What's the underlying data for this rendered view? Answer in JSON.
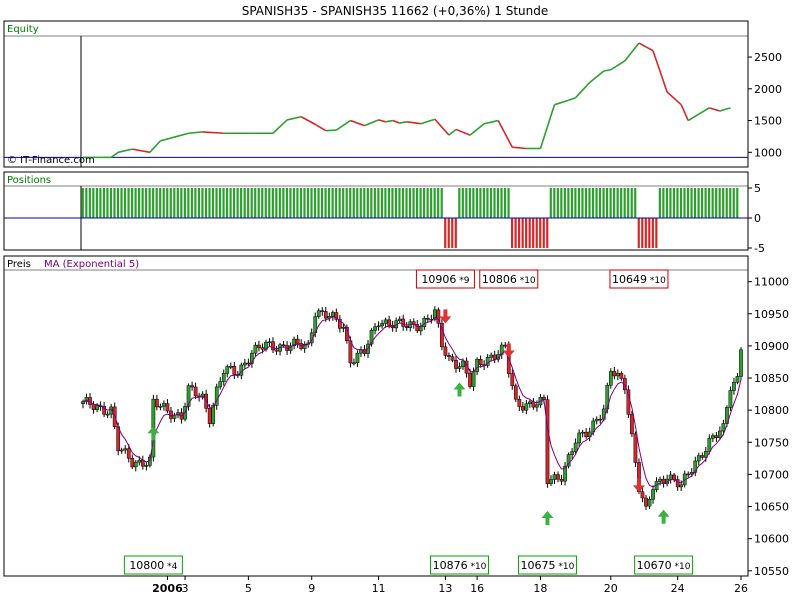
{
  "title": "SPANISH35 - SPANISH35     11662 (+0,36%)     1 Stunde",
  "watermark": "© IT-Finance.com",
  "colors": {
    "up": "#2ca02c",
    "down": "#d62728",
    "ma": "#800080",
    "pane_label_green": "#008000",
    "frame": "#000000",
    "zero_line": "#0000aa",
    "box_red": "#cc0000",
    "box_green": "#00aa00"
  },
  "panes": {
    "equity_label": "Equity",
    "positions_label": "Positions",
    "price_label": "Preis",
    "ma_label": "MA (Exponential 5)"
  },
  "chart_data": [
    {
      "type": "line",
      "pane": "Equity",
      "ylim": [
        800,
        2800
      ],
      "yticks": [
        "2500",
        "2000",
        "1500",
        "1000"
      ],
      "baseline": 920,
      "x": [
        0,
        8,
        10,
        14,
        19,
        22,
        26,
        30,
        34,
        40,
        48,
        54,
        58,
        62,
        66,
        69,
        72,
        76,
        80,
        84,
        86,
        88,
        90,
        92,
        96,
        100,
        104,
        106,
        110,
        114,
        118,
        122,
        126,
        130,
        134,
        138,
        140,
        144,
        148,
        150,
        154,
        158,
        162,
        166,
        170,
        172,
        175,
        178,
        181,
        184
      ],
      "y": [
        920,
        920,
        1000,
        1050,
        1000,
        1180,
        1240,
        1300,
        1320,
        1300,
        1300,
        1300,
        1510,
        1560,
        1440,
        1340,
        1350,
        1500,
        1420,
        1510,
        1480,
        1500,
        1460,
        1480,
        1450,
        1520,
        1270,
        1360,
        1270,
        1450,
        1500,
        1080,
        1060,
        1060,
        1750,
        1820,
        1860,
        2100,
        2280,
        2300,
        2440,
        2720,
        2600,
        1950,
        1750,
        1500,
        1600,
        1700,
        1650,
        1700
      ]
    },
    {
      "type": "bar",
      "pane": "Positions",
      "ylim": [
        -5,
        5
      ],
      "yticks": [
        "5",
        "0",
        "-5"
      ],
      "segments": [
        {
          "from": 0,
          "to": 103,
          "position": 5
        },
        {
          "from": 103,
          "to": 107,
          "position": -5
        },
        {
          "from": 107,
          "to": 122,
          "position": 5
        },
        {
          "from": 122,
          "to": 133,
          "position": -5
        },
        {
          "from": 133,
          "to": 158,
          "position": 5
        },
        {
          "from": 158,
          "to": 164,
          "position": -5
        },
        {
          "from": 164,
          "to": 187,
          "position": 5
        }
      ]
    },
    {
      "type": "candlestick",
      "pane": "Preis",
      "ylim": [
        10545,
        11015
      ],
      "yticks": [
        "11000",
        "10950",
        "10900",
        "10850",
        "10800",
        "10750",
        "10700",
        "10650",
        "10600",
        "10550"
      ],
      "xticks": [
        {
          "bar": 24,
          "label": "2006"
        },
        {
          "bar": 29,
          "label": "3"
        },
        {
          "bar": 47,
          "label": "5"
        },
        {
          "bar": 65,
          "label": "9"
        },
        {
          "bar": 84,
          "label": "11"
        },
        {
          "bar": 103,
          "label": "13"
        },
        {
          "bar": 112,
          "label": "16"
        },
        {
          "bar": 130,
          "label": "18"
        },
        {
          "bar": 150,
          "label": "20"
        },
        {
          "bar": 169,
          "label": "24"
        },
        {
          "bar": 187,
          "label": "26"
        }
      ],
      "anchors": [
        [
          0,
          10810
        ],
        [
          8,
          10800
        ],
        [
          10,
          10740
        ],
        [
          14,
          10720
        ],
        [
          19,
          10720
        ],
        [
          20,
          10810
        ],
        [
          24,
          10800
        ],
        [
          28,
          10790
        ],
        [
          30,
          10830
        ],
        [
          34,
          10820
        ],
        [
          36,
          10790
        ],
        [
          38,
          10830
        ],
        [
          40,
          10860
        ],
        [
          44,
          10860
        ],
        [
          48,
          10890
        ],
        [
          52,
          10900
        ],
        [
          58,
          10900
        ],
        [
          64,
          10900
        ],
        [
          66,
          10955
        ],
        [
          70,
          10945
        ],
        [
          74,
          10930
        ],
        [
          76,
          10880
        ],
        [
          80,
          10890
        ],
        [
          84,
          10940
        ],
        [
          88,
          10935
        ],
        [
          92,
          10930
        ],
        [
          96,
          10935
        ],
        [
          100,
          10950
        ],
        [
          102,
          10900
        ],
        [
          104,
          10880
        ],
        [
          108,
          10870
        ],
        [
          110,
          10840
        ],
        [
          112,
          10870
        ],
        [
          116,
          10885
        ],
        [
          120,
          10895
        ],
        [
          121,
          10860
        ],
        [
          123,
          10810
        ],
        [
          127,
          10810
        ],
        [
          131,
          10810
        ],
        [
          132,
          10690
        ],
        [
          136,
          10700
        ],
        [
          140,
          10750
        ],
        [
          144,
          10770
        ],
        [
          146,
          10790
        ],
        [
          148,
          10800
        ],
        [
          150,
          10860
        ],
        [
          154,
          10840
        ],
        [
          156,
          10760
        ],
        [
          158,
          10680
        ],
        [
          160,
          10640
        ],
        [
          162,
          10680
        ],
        [
          164,
          10690
        ],
        [
          166,
          10700
        ],
        [
          170,
          10680
        ],
        [
          172,
          10700
        ],
        [
          174,
          10720
        ],
        [
          178,
          10750
        ],
        [
          182,
          10770
        ],
        [
          184,
          10840
        ],
        [
          186,
          10850
        ],
        [
          187,
          10900
        ]
      ],
      "annotations": [
        {
          "label": "10906",
          "mult": "*9",
          "kind": "sell",
          "bar": 103,
          "level": 10935
        },
        {
          "label": "10806",
          "mult": "*10",
          "kind": "sell",
          "bar": 121,
          "level": 10882
        },
        {
          "label": "10649",
          "mult": "*10",
          "kind": "sell",
          "bar": 158,
          "level": 10672
        },
        {
          "label": "10800",
          "mult": "*4",
          "kind": "buy",
          "bar": 20,
          "level": 10775
        },
        {
          "label": "10876",
          "mult": "*10",
          "kind": "buy",
          "bar": 107,
          "level": 10843
        },
        {
          "label": "10675",
          "mult": "*10",
          "kind": "buy",
          "bar": 132,
          "level": 10643
        },
        {
          "label": "10670",
          "mult": "*10",
          "kind": "buy",
          "bar": 165,
          "level": 10645
        }
      ]
    }
  ]
}
